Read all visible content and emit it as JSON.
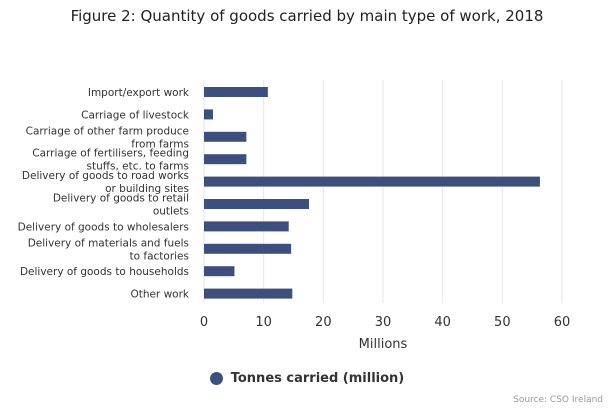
{
  "chart_data": {
    "type": "bar",
    "orientation": "horizontal",
    "title": "Figure 2: Quantity of goods carried by main type of work, 2018",
    "categories": [
      "Import/export work",
      "Carriage of livestock",
      "Carriage of other farm produce from farms",
      "Carriage of fertilisers, feeding stuffs, etc. to farms",
      "Delivery of goods to road works or building sites",
      "Delivery of goods to retail outlets",
      "Delivery of goods to wholesalers",
      "Delivery of materials and fuels to factories",
      "Delivery of goods to households",
      "Other work"
    ],
    "series": [
      {
        "name": "Tonnes carried (million)",
        "values": [
          10.7,
          1.5,
          7.1,
          7.1,
          56.3,
          17.6,
          14.2,
          14.6,
          5.1,
          14.8
        ]
      }
    ],
    "xlabel": "Millions",
    "ylabel": "",
    "xlim": [
      0,
      60
    ],
    "xticks": [
      0,
      10,
      20,
      30,
      40,
      50,
      60
    ],
    "grid": true,
    "legend_position": "bottom",
    "source": "Source: CSO Ireland",
    "colors": {
      "bar": "#3d4f7c",
      "grid": "#e6e6e6",
      "text": "#333333"
    }
  }
}
